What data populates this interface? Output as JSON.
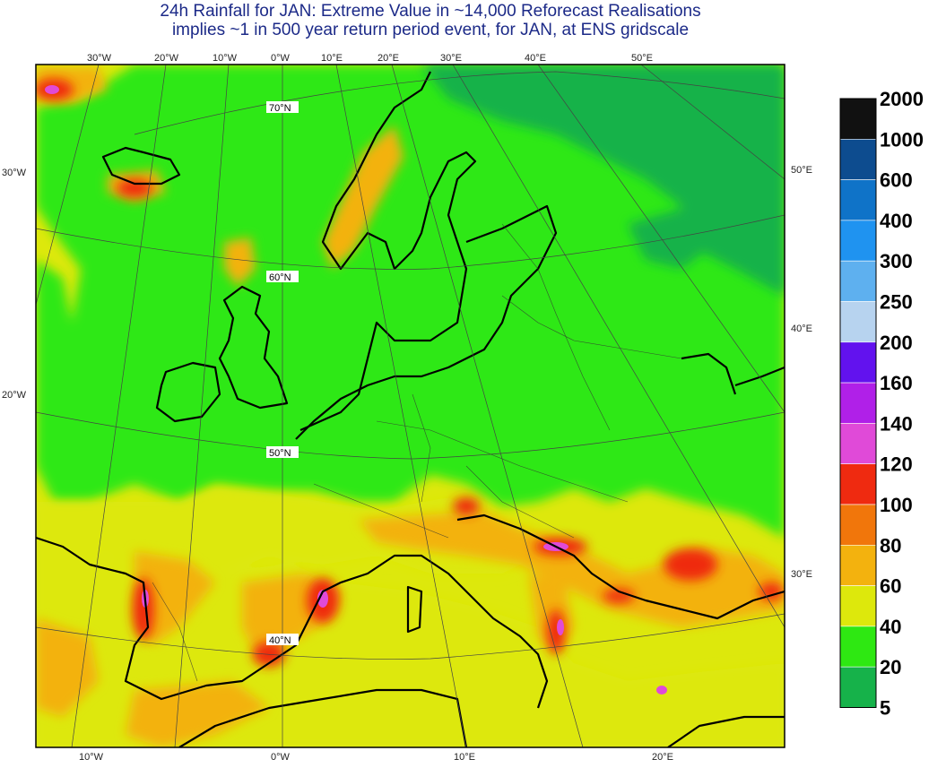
{
  "title": {
    "line1": "24h Rainfall for JAN: Extreme Value in ~14,000 Reforecast Realisations",
    "line2": "implies ~1 in 500 year return period event, for JAN, at ENS gridscale"
  },
  "map": {
    "top_lon_labels": [
      "30°W",
      "20°W",
      "10°W",
      "0°W",
      "10°E",
      "20°E",
      "30°E",
      "40°E",
      "50°E"
    ],
    "bottom_lon_labels": [
      "10°W",
      "0°W",
      "10°E",
      "20°E"
    ],
    "left_labels": [
      "30°W",
      "20°W"
    ],
    "right_labels": [
      "50°E",
      "40°E",
      "30°E"
    ],
    "lat_labels": [
      "70°N",
      "60°N",
      "50°N",
      "40°N"
    ]
  },
  "legend": {
    "values": [
      "2000",
      "1000",
      "600",
      "400",
      "300",
      "250",
      "200",
      "160",
      "140",
      "120",
      "100",
      "80",
      "60",
      "40",
      "20",
      "5"
    ],
    "colors": [
      "#111111",
      "#0d4c8f",
      "#0f73c8",
      "#1f93f0",
      "#5eb0ef",
      "#b7d3ef",
      "#6212ee",
      "#b020e8",
      "#e04ad8",
      "#ef2a10",
      "#f1760b",
      "#f3b20e",
      "#dde80c",
      "#2ee812",
      "#16b24a"
    ]
  },
  "colors": {
    "title": "#1c2a88",
    "base_field": "#dde80c"
  }
}
